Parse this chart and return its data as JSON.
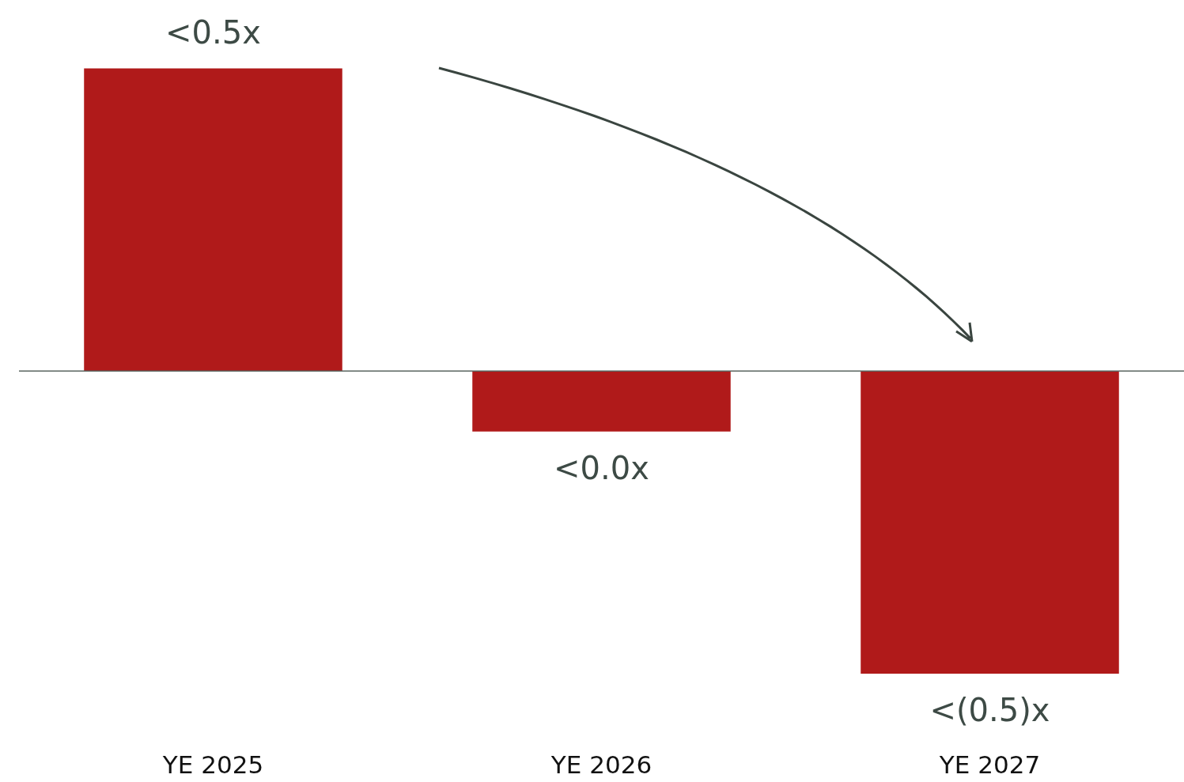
{
  "chart_data": {
    "type": "bar",
    "categories": [
      "YE 2025",
      "YE 2026",
      "YE 2027"
    ],
    "values": [
      0.5,
      -0.1,
      -0.5
    ],
    "value_labels": [
      "<0.5x",
      "<0.0x",
      "<(0.5)x"
    ],
    "color": "#b01a1a"
  }
}
